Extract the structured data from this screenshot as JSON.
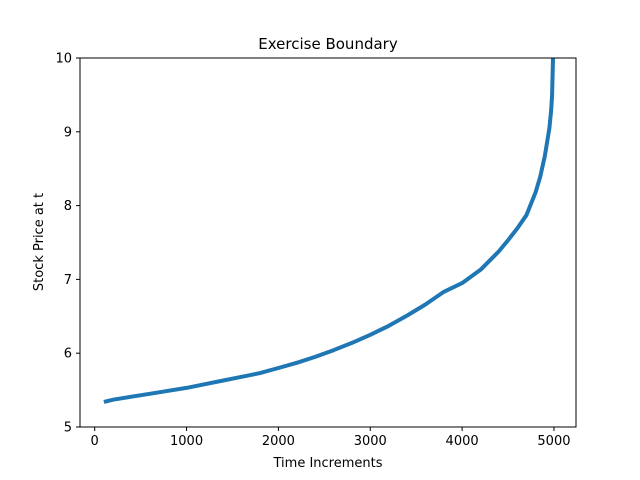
{
  "chart_data": {
    "type": "line",
    "title": "Exercise Boundary",
    "xlabel": "Time Increments",
    "ylabel": "Stock Price at t",
    "xlim": [
      -160,
      5240
    ],
    "ylim": [
      5,
      10
    ],
    "xticks": [
      0,
      1000,
      2000,
      3000,
      4000,
      5000
    ],
    "yticks": [
      5,
      6,
      7,
      8,
      9,
      10
    ],
    "xtick_labels": [
      "0",
      "1000",
      "2000",
      "3000",
      "4000",
      "5000"
    ],
    "ytick_labels": [
      "5",
      "6",
      "7",
      "8",
      "9",
      "10"
    ],
    "grid": false,
    "legend": "none",
    "line_color": "#1f77b4",
    "series": [
      {
        "x": [
          100,
          200,
          400,
          600,
          800,
          1000,
          1200,
          1400,
          1600,
          1800,
          2000,
          2200,
          2400,
          2600,
          2800,
          3000,
          3200,
          3400,
          3600,
          3800,
          4000,
          4200,
          4400,
          4500,
          4600,
          4700,
          4800,
          4850,
          4900,
          4950,
          4970,
          4980,
          4990
        ],
        "values": [
          5.34,
          5.37,
          5.41,
          5.45,
          5.49,
          5.53,
          5.58,
          5.63,
          5.68,
          5.73,
          5.8,
          5.87,
          5.95,
          6.04,
          6.14,
          6.25,
          6.37,
          6.51,
          6.66,
          6.83,
          6.95,
          7.13,
          7.38,
          7.53,
          7.69,
          7.87,
          8.18,
          8.39,
          8.67,
          9.05,
          9.3,
          9.5,
          10.0
        ]
      }
    ]
  }
}
